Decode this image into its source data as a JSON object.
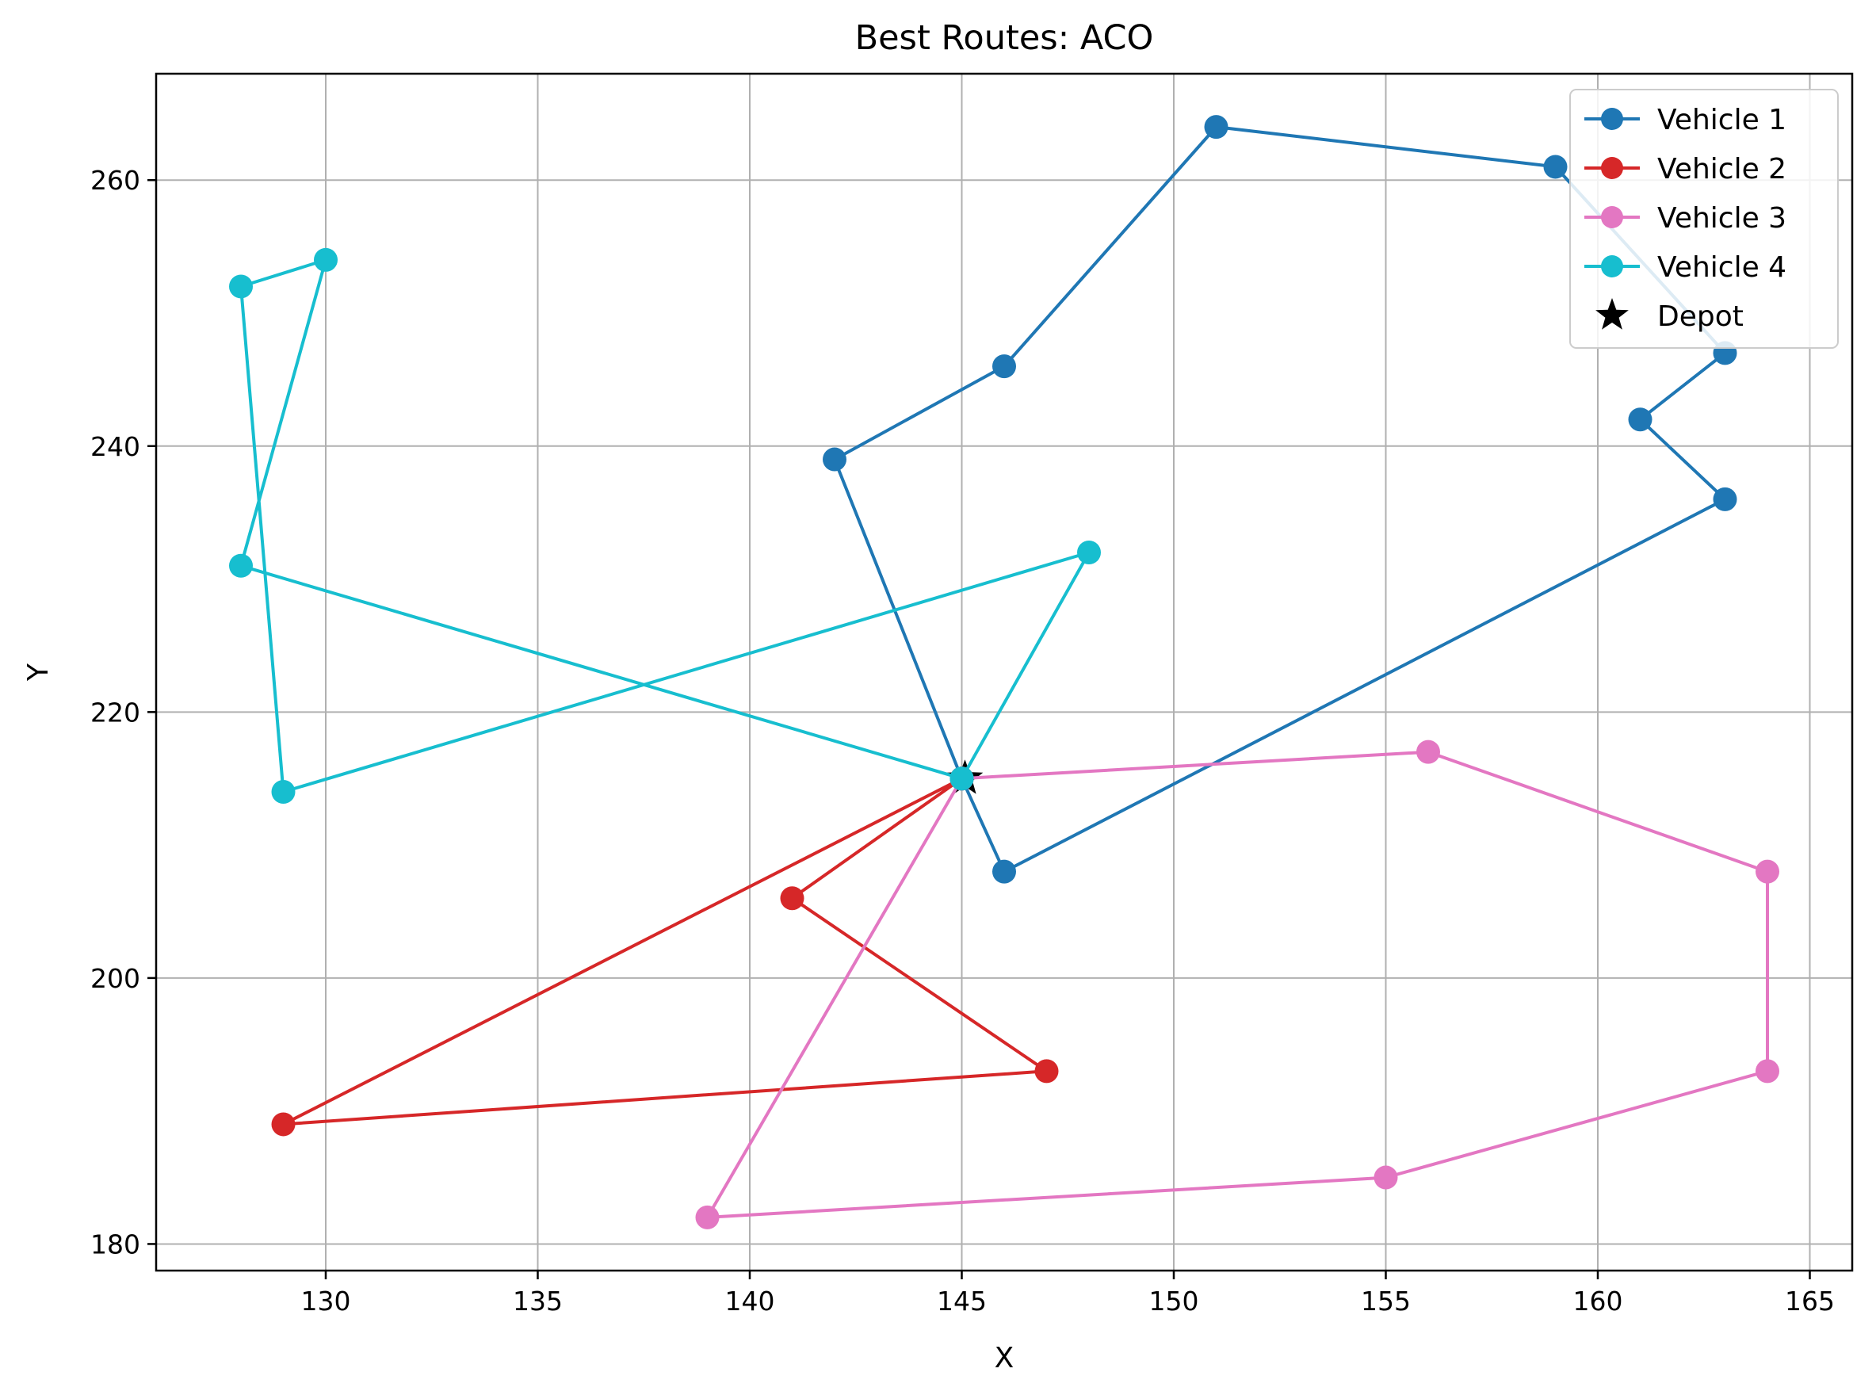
{
  "chart_data": {
    "type": "line",
    "title": "Best Routes: ACO",
    "xlabel": "X",
    "ylabel": "Y",
    "xlim": [
      126,
      166
    ],
    "ylim": [
      178,
      268
    ],
    "xticks": [
      130,
      135,
      140,
      145,
      150,
      155,
      160,
      165
    ],
    "yticks": [
      180,
      200,
      220,
      240,
      260
    ],
    "grid": true,
    "legend_position": "top-right",
    "series": [
      {
        "name": "Vehicle 1",
        "color": "#1f77b4",
        "points": [
          [
            145,
            215
          ],
          [
            142,
            239
          ],
          [
            146,
            246
          ],
          [
            151,
            264
          ],
          [
            159,
            261
          ],
          [
            163,
            247
          ],
          [
            161,
            242
          ],
          [
            163,
            236
          ],
          [
            146,
            208
          ],
          [
            145,
            215
          ]
        ]
      },
      {
        "name": "Vehicle 2",
        "color": "#d62728",
        "points": [
          [
            145,
            215
          ],
          [
            141,
            206
          ],
          [
            147,
            193
          ],
          [
            129,
            189
          ],
          [
            145,
            215
          ]
        ]
      },
      {
        "name": "Vehicle 3",
        "color": "#e377c2",
        "points": [
          [
            145,
            215
          ],
          [
            156,
            217
          ],
          [
            164,
            208
          ],
          [
            164,
            193
          ],
          [
            155,
            185
          ],
          [
            139,
            182
          ],
          [
            145,
            215
          ]
        ]
      },
      {
        "name": "Vehicle 4",
        "color": "#17becf",
        "points": [
          [
            145,
            215
          ],
          [
            128,
            231
          ],
          [
            130,
            254
          ],
          [
            128,
            252
          ],
          [
            129,
            214
          ],
          [
            148,
            232
          ],
          [
            145,
            215
          ]
        ]
      }
    ],
    "depot": {
      "name": "Depot",
      "color": "#000000",
      "point": [
        145,
        215
      ]
    }
  }
}
